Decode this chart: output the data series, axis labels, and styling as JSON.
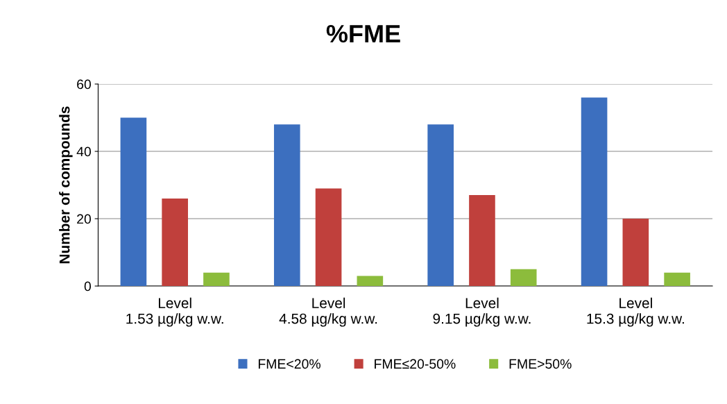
{
  "chart_data": {
    "type": "bar",
    "title": "%FME",
    "ylabel": "Number of compounds",
    "categories": [
      "Level\n1.53 µg/kg w.w.",
      "Level\n4.58 µg/kg w.w.",
      "Level\n9.15 µg/kg w.w.",
      "Level\n15.3 µg/kg w.w."
    ],
    "series": [
      {
        "name": "FME<20%",
        "color": "#3c6fbf",
        "values": [
          50,
          48,
          48,
          56
        ]
      },
      {
        "name": "FME≤20-50%",
        "color": "#c0403c",
        "values": [
          26,
          29,
          27,
          20
        ]
      },
      {
        "name": "FME>50%",
        "color": "#8cbc3c",
        "values": [
          4,
          3,
          5,
          4
        ]
      }
    ],
    "ylim": [
      0,
      60
    ],
    "yticks": [
      0,
      20,
      40,
      60
    ],
    "grid": "y",
    "legend": "bottom"
  }
}
